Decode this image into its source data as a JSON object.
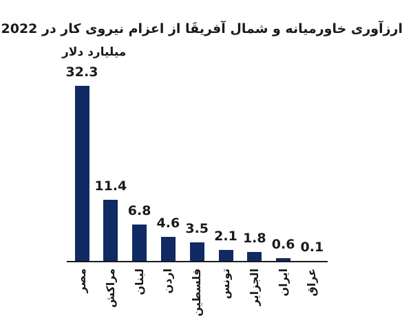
{
  "page": {
    "background": "#ffffff"
  },
  "chart_data": {
    "type": "bar",
    "title": "ارزآوری خاورمیانه و شمال آفریقَا از اعزام نیروی کار در 2022",
    "unit_label": "میلیارد دلار",
    "categories": [
      "مصر",
      "مراکش",
      "لبنان",
      "اردن",
      "فلسطین",
      "تونس",
      "الجزایر",
      "ایران",
      "عراق"
    ],
    "values": [
      32.3,
      11.4,
      6.8,
      4.6,
      3.5,
      2.1,
      1.8,
      0.6,
      0.1
    ],
    "value_labels": [
      "32.3",
      "11.4",
      "6.8",
      "4.6",
      "3.5",
      "2.1",
      "1.8",
      "0.6",
      "0.1"
    ],
    "ylim": [
      0,
      32.3
    ],
    "xlabel": "",
    "ylabel": "میلیارد دلار",
    "grid": false,
    "legend": "none",
    "category_label_rotation": -90,
    "text_direction": "rtl",
    "bar_color": "#102a63",
    "axis_color": "#1a1a1a",
    "text_color": "#1a1a1a"
  }
}
